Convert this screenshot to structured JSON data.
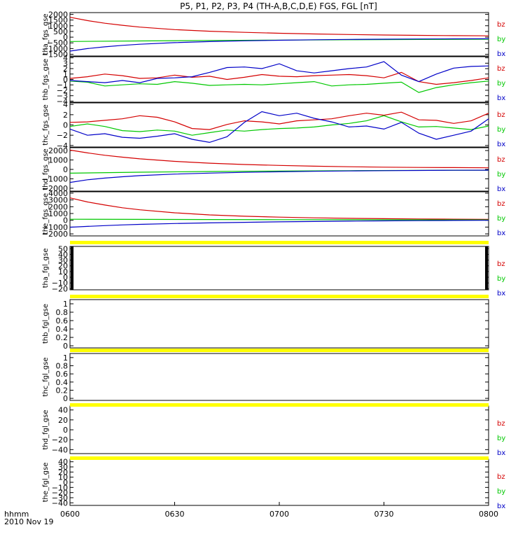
{
  "title": "P5, P1, P2, P3, P4 (TH-A,B,C,D,E) FGS, FGL [nT]",
  "footer": {
    "label": "hhmm",
    "date": "2010 Nov 19"
  },
  "colors": {
    "bz": "#d40000",
    "by": "#00c800",
    "bx": "#0000c8",
    "bar": "#ffff00"
  },
  "chart_data": {
    "type": "line",
    "x_ticks": [
      "0600",
      "0630",
      "0700",
      "0730",
      "0800"
    ],
    "x_range": [
      "06:00",
      "08:00"
    ],
    "components": [
      "bz",
      "by",
      "bx"
    ],
    "panels": [
      {
        "ylabel": "tha_fgs_gse",
        "yticks": [
          2000,
          1500,
          1000,
          500,
          0,
          -500,
          -1000,
          -1500
        ],
        "ylim": [
          -1650,
          2150
        ],
        "series": [
          {
            "name": "bz",
            "x": [
              0,
              5,
              10,
              15,
              20,
              30,
              40,
              50,
              60,
              70,
              80,
              90,
              100,
              110,
              120
            ],
            "values": [
              1740,
              1450,
              1220,
              1040,
              880,
              660,
              520,
              420,
              340,
              280,
              230,
              190,
              160,
              135,
              115
            ]
          },
          {
            "name": "by",
            "x": [
              0,
              20,
              40,
              60,
              80,
              100,
              120
            ],
            "values": [
              -380,
              -330,
              -290,
              -260,
              -230,
              -205,
              -180
            ]
          },
          {
            "name": "bx",
            "x": [
              0,
              5,
              10,
              15,
              20,
              30,
              40,
              50,
              60,
              70,
              80,
              90,
              100,
              110,
              120
            ],
            "values": [
              -1220,
              -1000,
              -850,
              -720,
              -620,
              -480,
              -390,
              -320,
              -270,
              -230,
              -200,
              -180,
              -160,
              -150,
              -140
            ]
          }
        ]
      },
      {
        "ylabel": "thb_fgs_gse",
        "yticks": [
          4,
          3,
          2,
          1,
          0,
          -1,
          -2,
          -3,
          -4
        ],
        "ylim": [
          -4.2,
          4.2
        ],
        "series": [
          {
            "name": "bz",
            "x": [
              0,
              5,
              10,
              15,
              20,
              25,
              30,
              35,
              40,
              45,
              50,
              55,
              60,
              65,
              70,
              75,
              80,
              85,
              90,
              95,
              100,
              105,
              110,
              115,
              120
            ],
            "values": [
              0.2,
              0.5,
              1.0,
              0.7,
              0.2,
              0.3,
              0.8,
              0.4,
              0.6,
              0.0,
              0.4,
              0.9,
              0.6,
              0.5,
              0.7,
              0.8,
              0.9,
              0.7,
              0.3,
              1.3,
              -0.4,
              -0.9,
              -0.6,
              -0.2,
              0.3
            ]
          },
          {
            "name": "by",
            "x": [
              0,
              5,
              10,
              15,
              20,
              25,
              30,
              35,
              40,
              45,
              50,
              55,
              60,
              65,
              70,
              75,
              80,
              85,
              90,
              95,
              100,
              105,
              110,
              115,
              120
            ],
            "values": [
              -0.3,
              -0.5,
              -1.2,
              -1.0,
              -0.8,
              -0.9,
              -0.4,
              -0.7,
              -1.1,
              -1.0,
              -0.9,
              -1.0,
              -0.8,
              -0.6,
              -0.4,
              -1.2,
              -1.0,
              -0.9,
              -0.7,
              -0.5,
              -2.4,
              -1.5,
              -1.0,
              -0.6,
              -0.3
            ]
          },
          {
            "name": "bx",
            "x": [
              0,
              5,
              10,
              15,
              20,
              25,
              30,
              35,
              40,
              45,
              50,
              55,
              60,
              65,
              70,
              75,
              80,
              85,
              90,
              95,
              100,
              105,
              110,
              115,
              120
            ],
            "values": [
              -0.2,
              -0.4,
              -0.6,
              -0.2,
              -0.6,
              0.2,
              0.3,
              0.5,
              1.3,
              2.2,
              2.3,
              2.0,
              2.9,
              1.6,
              1.2,
              1.6,
              2.0,
              2.3,
              3.3,
              0.8,
              -0.4,
              1.0,
              2.1,
              2.4,
              2.5
            ]
          }
        ]
      },
      {
        "ylabel": "thc_fgs_gse",
        "yticks": [
          4,
          2,
          0,
          -2,
          -4
        ],
        "ylim": [
          -4.3,
          4.3
        ],
        "series": [
          {
            "name": "bz",
            "x": [
              0,
              5,
              10,
              15,
              20,
              25,
              30,
              35,
              40,
              45,
              50,
              55,
              60,
              65,
              70,
              75,
              80,
              85,
              90,
              95,
              100,
              105,
              110,
              115,
              120
            ],
            "values": [
              0.5,
              0.6,
              0.9,
              1.2,
              1.8,
              1.5,
              0.6,
              -0.7,
              -0.9,
              0.1,
              0.8,
              0.6,
              0.2,
              0.8,
              1.0,
              1.2,
              1.8,
              2.3,
              1.9,
              2.5,
              1.0,
              0.9,
              0.3,
              0.8,
              2.3
            ]
          },
          {
            "name": "by",
            "x": [
              0,
              5,
              10,
              15,
              20,
              25,
              30,
              35,
              40,
              45,
              50,
              55,
              60,
              65,
              70,
              75,
              80,
              85,
              90,
              95,
              100,
              105,
              110,
              115,
              120
            ],
            "values": [
              -0.3,
              0.2,
              -0.3,
              -1.1,
              -1.3,
              -1.0,
              -1.2,
              -2.0,
              -1.5,
              -1.0,
              -1.2,
              -0.9,
              -0.7,
              -0.6,
              -0.4,
              0.0,
              0.3,
              0.8,
              1.8,
              0.6,
              -0.4,
              -0.3,
              -0.6,
              -0.9,
              -0.2
            ]
          },
          {
            "name": "bx",
            "x": [
              0,
              5,
              10,
              15,
              20,
              25,
              30,
              35,
              40,
              45,
              50,
              55,
              60,
              65,
              70,
              75,
              80,
              85,
              90,
              95,
              100,
              105,
              110,
              115,
              120
            ],
            "values": [
              -0.8,
              -2.0,
              -1.7,
              -2.4,
              -2.6,
              -2.2,
              -1.7,
              -2.8,
              -3.4,
              -2.3,
              0.5,
              2.6,
              1.8,
              2.3,
              1.3,
              0.6,
              -0.4,
              -0.2,
              -0.8,
              0.5,
              -1.6,
              -2.8,
              -2.0,
              -1.2,
              1.2
            ]
          }
        ]
      },
      {
        "ylabel": "thd_fgs_gse",
        "yticks": [
          2000,
          1000,
          0,
          -1000,
          -2000
        ],
        "ylim": [
          -2300,
          2300
        ],
        "series": [
          {
            "name": "bz",
            "x": [
              0,
              5,
              10,
              15,
              20,
              30,
              40,
              50,
              60,
              70,
              80,
              90,
              100,
              110,
              120
            ],
            "values": [
              2050,
              1750,
              1500,
              1300,
              1120,
              850,
              660,
              520,
              420,
              340,
              280,
              240,
              210,
              190,
              170
            ]
          },
          {
            "name": "by",
            "x": [
              0,
              20,
              40,
              60,
              80,
              100,
              120
            ],
            "values": [
              -400,
              -300,
              -220,
              -170,
              -130,
              -100,
              -80
            ]
          },
          {
            "name": "bx",
            "x": [
              0,
              5,
              10,
              15,
              20,
              30,
              40,
              50,
              60,
              70,
              80,
              90,
              100,
              110,
              120
            ],
            "values": [
              -1380,
              -1100,
              -920,
              -780,
              -660,
              -500,
              -390,
              -310,
              -250,
              -200,
              -160,
              -130,
              -110,
              -90,
              -80
            ]
          }
        ]
      },
      {
        "ylabel": "the_fgs_gse",
        "yticks": [
          4000,
          3000,
          2000,
          1000,
          0,
          -1000,
          -2000
        ],
        "ylim": [
          -2300,
          4200
        ],
        "series": [
          {
            "name": "bz",
            "x": [
              0,
              5,
              10,
              15,
              20,
              30,
              40,
              50,
              60,
              70,
              80,
              90,
              100,
              110,
              120
            ],
            "values": [
              3300,
              2700,
              2250,
              1850,
              1550,
              1100,
              800,
              600,
              460,
              360,
              290,
              240,
              200,
              170,
              150
            ]
          },
          {
            "name": "by",
            "x": [
              0,
              20,
              40,
              60,
              80,
              100,
              120
            ],
            "values": [
              160,
              130,
              110,
              90,
              80,
              70,
              60
            ]
          },
          {
            "name": "bx",
            "x": [
              0,
              5,
              10,
              15,
              20,
              30,
              40,
              50,
              60,
              70,
              80,
              90,
              100,
              110,
              120
            ],
            "values": [
              -1020,
              -900,
              -780,
              -680,
              -600,
              -470,
              -380,
              -300,
              -230,
              -170,
              -120,
              -80,
              -50,
              -20,
              0
            ]
          }
        ]
      },
      {
        "ylabel": "tha_fgl_gse",
        "yticks": [
          50,
          40,
          30,
          20,
          10,
          0,
          -10,
          -20
        ],
        "ylim": [
          -22,
          54
        ],
        "series": []
      },
      {
        "ylabel": "thb_fgl_gse",
        "yticks": [
          1.0,
          0.8,
          0.6,
          0.4,
          0.2,
          0.0
        ],
        "ylim": [
          -0.05,
          1.1
        ],
        "series": []
      },
      {
        "ylabel": "thc_fgl_gse",
        "yticks": [
          1.0,
          0.8,
          0.6,
          0.4,
          0.2,
          0.0
        ],
        "ylim": [
          -0.05,
          1.1
        ],
        "series": []
      },
      {
        "ylabel": "thd_fgl_gse",
        "yticks": [
          40,
          20,
          0,
          -20,
          -40
        ],
        "ylim": [
          -48,
          48
        ],
        "series": []
      },
      {
        "ylabel": "the_fgl_gse",
        "yticks": [
          40,
          30,
          20,
          10,
          0,
          -10,
          -20,
          -30,
          -40
        ],
        "ylim": [
          -45,
          45
        ],
        "series": []
      }
    ]
  }
}
